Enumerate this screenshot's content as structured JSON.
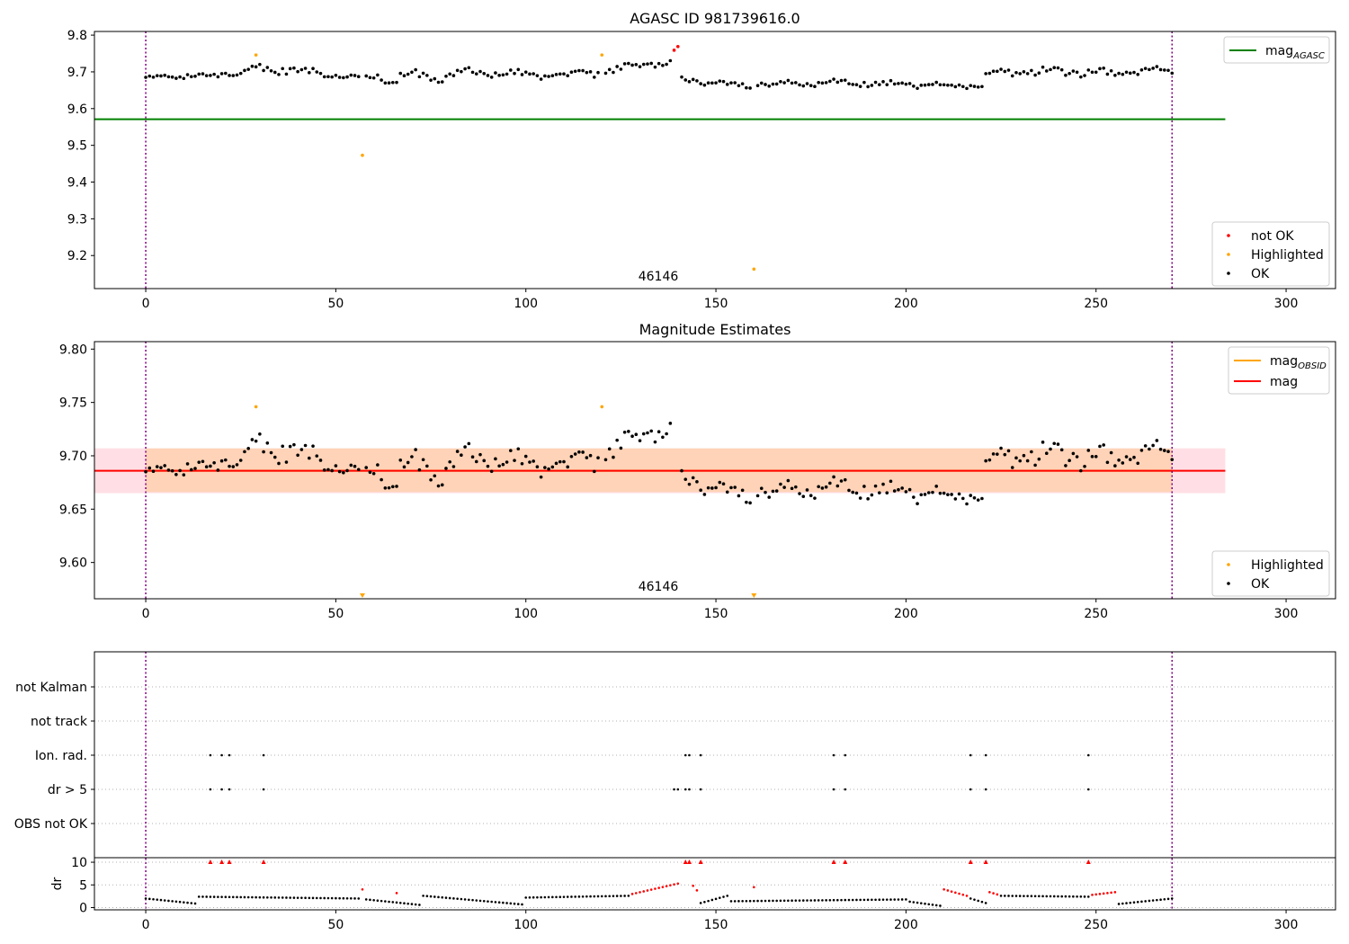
{
  "chart_data": [
    {
      "type": "scatter",
      "title": "AGASC ID 981739616.0",
      "annotation": "46146",
      "x_ticks": [
        0,
        50,
        100,
        150,
        200,
        250,
        300
      ],
      "y_ticks": [
        "9.2",
        "9.3",
        "9.4",
        "9.5",
        "9.6",
        "9.7",
        "9.8"
      ],
      "xlim": [
        -13.5,
        313
      ],
      "ylim": [
        9.11,
        9.81
      ],
      "vlines": [
        0,
        270
      ],
      "hlines": [
        {
          "name": "mag_AGASC",
          "y": 9.571,
          "x_start": -13.5,
          "x_end": 284,
          "color": "#008000"
        }
      ],
      "legend_lines": [
        {
          "label": "mag",
          "sub": "AGASC",
          "color": "#008000"
        }
      ],
      "legend_markers": [
        {
          "label": "not OK",
          "color": "#ff0000"
        },
        {
          "label": "Highlighted",
          "color": "#ffa500"
        },
        {
          "label": "OK",
          "color": "#000000"
        }
      ],
      "highlighted": [
        [
          29,
          9.746
        ],
        [
          57,
          9.473
        ],
        [
          120,
          9.746
        ],
        [
          160,
          9.163
        ]
      ],
      "not_ok": [
        [
          139,
          9.759
        ],
        [
          140,
          9.769
        ]
      ],
      "ok_segments": [
        {
          "x0": 0,
          "x1": 27,
          "y_start": 9.684,
          "y_end": 9.7,
          "amp": 0.01
        },
        {
          "x0": 28,
          "x1": 56,
          "y_start": 9.71,
          "y_end": 9.685,
          "amp": 0.016
        },
        {
          "x0": 58,
          "x1": 90,
          "y_start": 9.69,
          "y_end": 9.69,
          "amp": 0.022
        },
        {
          "x0": 91,
          "x1": 119,
          "y_start": 9.69,
          "y_end": 9.7,
          "amp": 0.016
        },
        {
          "x0": 121,
          "x1": 138,
          "y_start": 9.7,
          "y_end": 9.725,
          "amp": 0.016
        },
        {
          "x0": 141,
          "x1": 159,
          "y_start": 9.675,
          "y_end": 9.665,
          "amp": 0.011
        },
        {
          "x0": 161,
          "x1": 220,
          "y_start": 9.67,
          "y_end": 9.665,
          "amp": 0.012
        },
        {
          "x0": 221,
          "x1": 270,
          "y_start": 9.69,
          "y_end": 9.705,
          "amp": 0.018
        }
      ]
    },
    {
      "type": "scatter",
      "title": "Magnitude Estimates",
      "annotation": "46146",
      "x_ticks": [
        0,
        50,
        100,
        150,
        200,
        250,
        300
      ],
      "y_ticks": [
        "9.60",
        "9.65",
        "9.70",
        "9.75",
        "9.80"
      ],
      "xlim": [
        -13.5,
        313
      ],
      "ylim": [
        9.566,
        9.807
      ],
      "vlines": [
        0,
        270
      ],
      "mag_line": {
        "y": 9.686,
        "x_start": -13.5,
        "x_end": 284,
        "color": "#ff0000"
      },
      "mag_band": {
        "y_low": 9.665,
        "y_high": 9.707,
        "x_start": -13.5,
        "x_end": 284,
        "color": "#ffc0cb"
      },
      "obsid_band": {
        "y_low": 9.666,
        "y_high": 9.707,
        "x_start": 0,
        "x_end": 270,
        "color": "#ffa500"
      },
      "obsid_line": {
        "y": 9.686,
        "x_start": 0,
        "x_end": 270,
        "color": "#ffa500"
      },
      "legend_lines": [
        {
          "label": "mag",
          "sub": "OBSID",
          "color": "#ffa500"
        },
        {
          "label": "mag",
          "sub": "",
          "color": "#ff0000"
        }
      ],
      "legend_markers": [
        {
          "label": "Highlighted",
          "color": "#ffa500"
        },
        {
          "label": "OK",
          "color": "#000000"
        }
      ],
      "highlighted": [
        [
          29,
          9.746
        ],
        [
          120,
          9.746
        ]
      ],
      "off_scale": [
        57,
        160
      ],
      "ok_segments": [
        {
          "x0": 0,
          "x1": 27,
          "y_start": 9.684,
          "y_end": 9.7,
          "amp": 0.01
        },
        {
          "x0": 28,
          "x1": 56,
          "y_start": 9.71,
          "y_end": 9.685,
          "amp": 0.016
        },
        {
          "x0": 58,
          "x1": 90,
          "y_start": 9.69,
          "y_end": 9.69,
          "amp": 0.022
        },
        {
          "x0": 91,
          "x1": 119,
          "y_start": 9.69,
          "y_end": 9.7,
          "amp": 0.016
        },
        {
          "x0": 121,
          "x1": 138,
          "y_start": 9.7,
          "y_end": 9.725,
          "amp": 0.016
        },
        {
          "x0": 141,
          "x1": 159,
          "y_start": 9.675,
          "y_end": 9.665,
          "amp": 0.011
        },
        {
          "x0": 161,
          "x1": 220,
          "y_start": 9.67,
          "y_end": 9.665,
          "amp": 0.012
        },
        {
          "x0": 221,
          "x1": 270,
          "y_start": 9.69,
          "y_end": 9.705,
          "amp": 0.018
        }
      ]
    },
    {
      "type": "scatter",
      "title": "",
      "x_ticks": [
        0,
        50,
        100,
        150,
        200,
        250,
        300
      ],
      "xlim": [
        -13.5,
        313
      ],
      "vlines": [
        0,
        270
      ],
      "flag_rows": [
        "not Kalman",
        "not track",
        "Ion. rad.",
        "dr > 5",
        "OBS not OK"
      ],
      "flags": {
        "Ion. rad.": [
          17,
          20,
          22,
          31,
          142,
          143,
          146,
          181,
          184,
          217,
          221,
          248
        ],
        "dr > 5": [
          17,
          20,
          22,
          31,
          139,
          140,
          142,
          143,
          146,
          181,
          184,
          217,
          221,
          248
        ]
      },
      "dr": {
        "ylabel": "dr",
        "y_ticks": [
          "0",
          "5",
          "10"
        ],
        "ylim": [
          -0.5,
          11
        ],
        "gridlines": [
          0,
          5,
          10
        ],
        "flagged": [
          [
            17,
            10
          ],
          [
            20,
            10
          ],
          [
            22,
            10
          ],
          [
            31,
            10
          ],
          [
            142,
            10
          ],
          [
            143,
            10
          ],
          [
            146,
            10
          ],
          [
            181,
            10
          ],
          [
            184,
            10
          ],
          [
            217,
            10
          ],
          [
            221,
            10
          ],
          [
            248,
            10
          ],
          [
            57,
            4.0
          ],
          [
            66,
            3.2
          ],
          [
            160,
            4.5
          ]
        ],
        "red_segments": [
          {
            "x0": 128,
            "x1": 140,
            "y_start": 3.0,
            "y_end": 5.3
          },
          {
            "x0": 144,
            "x1": 145,
            "y_start": 4.8,
            "y_end": 3.8
          },
          {
            "x0": 210,
            "x1": 216,
            "y_start": 4.0,
            "y_end": 2.6
          },
          {
            "x0": 222,
            "x1": 224,
            "y_start": 3.4,
            "y_end": 2.9
          },
          {
            "x0": 249,
            "x1": 255,
            "y_start": 2.8,
            "y_end": 3.4
          }
        ],
        "ok_segments": [
          {
            "x0": 0,
            "x1": 13,
            "y_start": 2.0,
            "y_end": 0.9
          },
          {
            "x0": 14,
            "x1": 56,
            "y_start": 2.4,
            "y_end": 2.0
          },
          {
            "x0": 58,
            "x1": 72,
            "y_start": 1.8,
            "y_end": 0.6
          },
          {
            "x0": 73,
            "x1": 99,
            "y_start": 2.6,
            "y_end": 0.7
          },
          {
            "x0": 100,
            "x1": 127,
            "y_start": 2.2,
            "y_end": 2.6
          },
          {
            "x0": 146,
            "x1": 153,
            "y_start": 1.0,
            "y_end": 2.6
          },
          {
            "x0": 154,
            "x1": 200,
            "y_start": 1.4,
            "y_end": 1.8
          },
          {
            "x0": 201,
            "x1": 209,
            "y_start": 1.3,
            "y_end": 0.4
          },
          {
            "x0": 217,
            "x1": 221,
            "y_start": 2.0,
            "y_end": 1.0
          },
          {
            "x0": 225,
            "x1": 248,
            "y_start": 2.6,
            "y_end": 2.4
          },
          {
            "x0": 256,
            "x1": 270,
            "y_start": 0.8,
            "y_end": 2.0
          }
        ]
      }
    }
  ]
}
